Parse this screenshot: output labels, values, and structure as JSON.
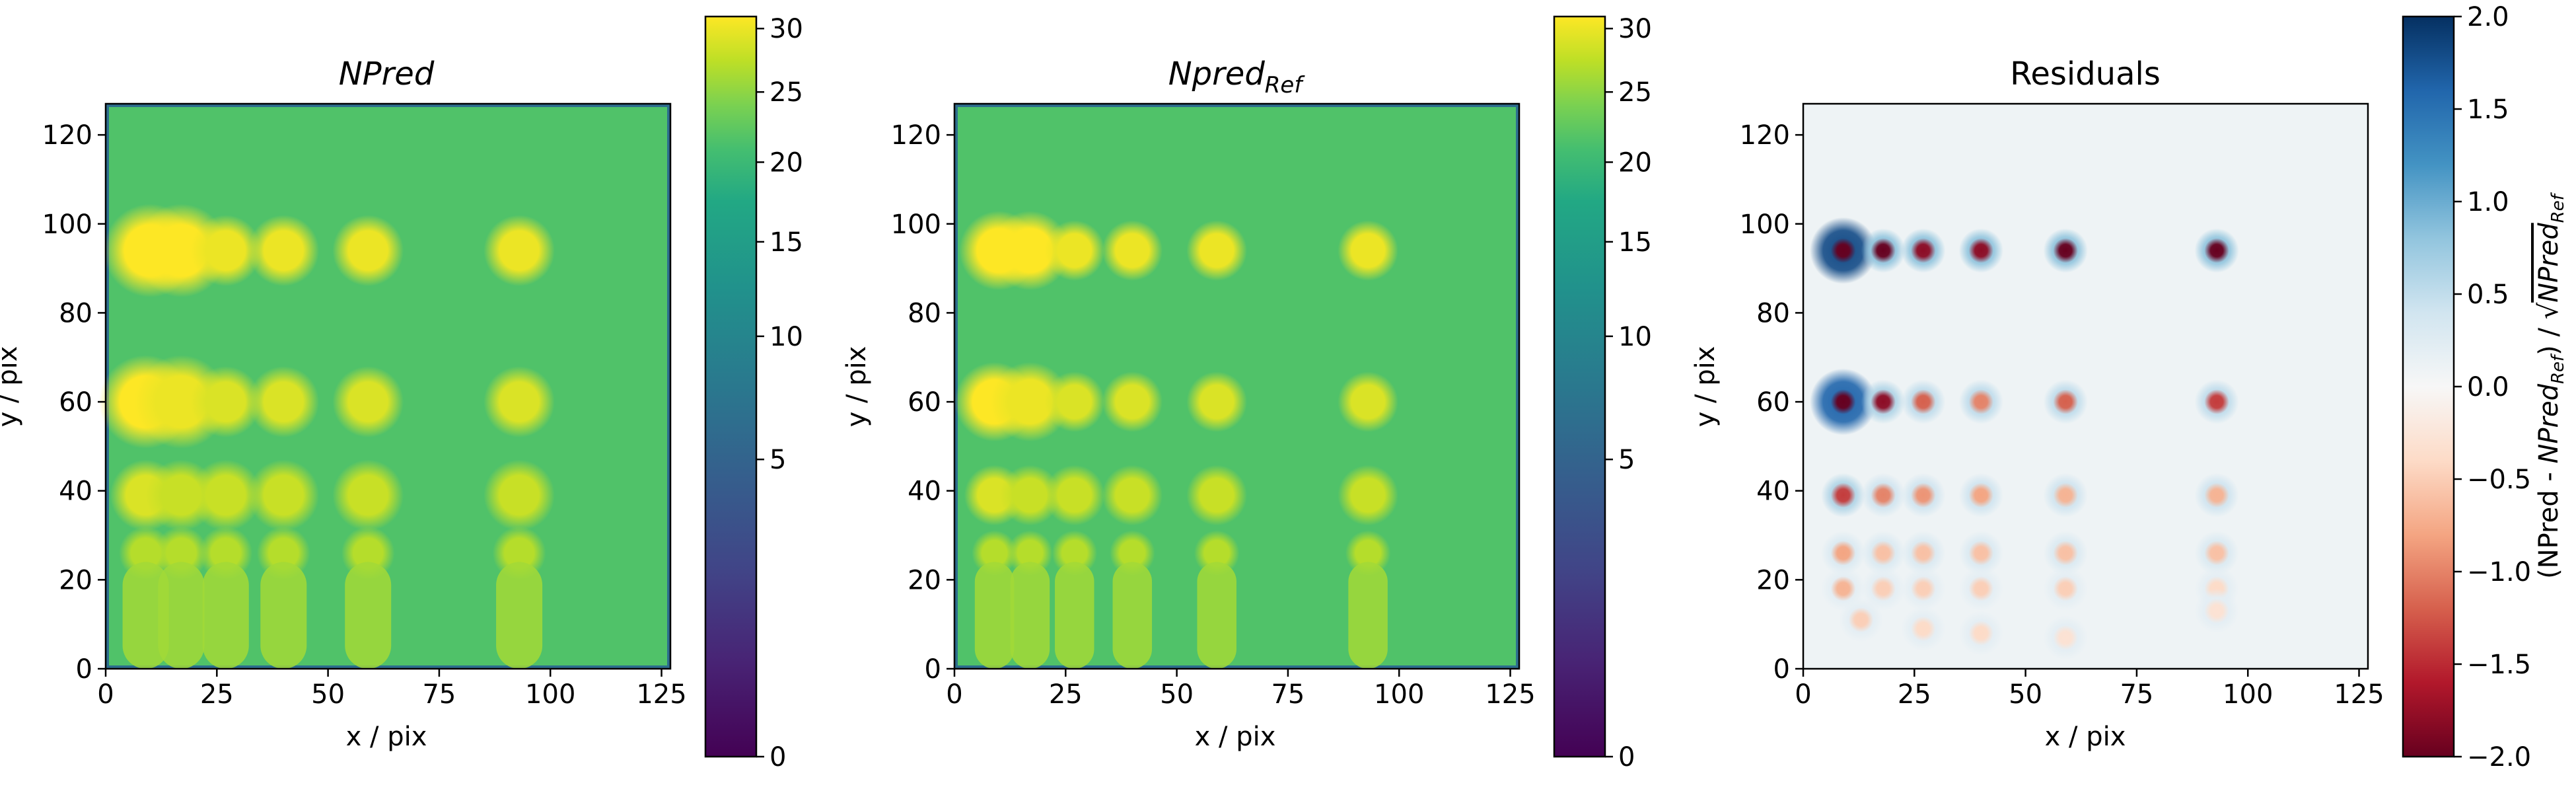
{
  "chart_data": [
    {
      "type": "heatmap",
      "title": "NPred",
      "xlabel": "x / pix",
      "ylabel": "y / pix",
      "xlim": [
        0,
        127
      ],
      "ylim": [
        0,
        127
      ],
      "x_ticks": [
        "0",
        "25",
        "50",
        "75",
        "100",
        "125"
      ],
      "y_ticks": [
        "0",
        "20",
        "40",
        "60",
        "80",
        "100",
        "120"
      ],
      "colormap": "viridis",
      "colorbar": {
        "scale": "sqrt",
        "ticks": [
          "0",
          "5",
          "10",
          "15",
          "20",
          "25",
          "30"
        ],
        "range": [
          0,
          31
        ]
      },
      "background_level": 21.5,
      "sources": [
        {
          "x": 10,
          "y": 94,
          "peak": 31,
          "size": "large"
        },
        {
          "x": 17,
          "y": 94,
          "peak": 31,
          "size": "large"
        },
        {
          "x": 27,
          "y": 94,
          "peak": 30,
          "size": "medium"
        },
        {
          "x": 40,
          "y": 94,
          "peak": 30,
          "size": "medium"
        },
        {
          "x": 59,
          "y": 94,
          "peak": 30,
          "size": "medium"
        },
        {
          "x": 93,
          "y": 94,
          "peak": 30,
          "size": "medium"
        },
        {
          "x": 9,
          "y": 60,
          "peak": 31,
          "size": "large"
        },
        {
          "x": 17,
          "y": 60,
          "peak": 30,
          "size": "large"
        },
        {
          "x": 27,
          "y": 60,
          "peak": 29,
          "size": "medium"
        },
        {
          "x": 40,
          "y": 60,
          "peak": 29,
          "size": "medium"
        },
        {
          "x": 59,
          "y": 60,
          "peak": 29,
          "size": "medium"
        },
        {
          "x": 93,
          "y": 60,
          "peak": 29,
          "size": "medium"
        },
        {
          "x": 9,
          "y": 39,
          "peak": 29,
          "size": "medium"
        },
        {
          "x": 17,
          "y": 39,
          "peak": 28,
          "size": "medium"
        },
        {
          "x": 27,
          "y": 39,
          "peak": 28,
          "size": "medium"
        },
        {
          "x": 40,
          "y": 39,
          "peak": 28,
          "size": "medium"
        },
        {
          "x": 59,
          "y": 39,
          "peak": 28,
          "size": "medium"
        },
        {
          "x": 93,
          "y": 39,
          "peak": 28,
          "size": "medium"
        },
        {
          "x": 9,
          "y": 26,
          "peak": 27,
          "size": "small"
        },
        {
          "x": 17,
          "y": 26,
          "peak": 27,
          "size": "small"
        },
        {
          "x": 27,
          "y": 26,
          "peak": 27,
          "size": "small"
        },
        {
          "x": 40,
          "y": 26,
          "peak": 27,
          "size": "small"
        },
        {
          "x": 59,
          "y": 26,
          "peak": 27,
          "size": "small"
        },
        {
          "x": 93,
          "y": 26,
          "peak": 27,
          "size": "small"
        },
        {
          "x": 9,
          "y": 12,
          "peak": 26,
          "size": "column"
        },
        {
          "x": 17,
          "y": 12,
          "peak": 26,
          "size": "column"
        },
        {
          "x": 27,
          "y": 12,
          "peak": 26,
          "size": "column"
        },
        {
          "x": 40,
          "y": 12,
          "peak": 26,
          "size": "column"
        },
        {
          "x": 59,
          "y": 12,
          "peak": 26,
          "size": "column"
        },
        {
          "x": 93,
          "y": 12,
          "peak": 26,
          "size": "column"
        }
      ]
    },
    {
      "type": "heatmap",
      "title_base": "Npred",
      "title_sub": "Ref",
      "xlabel": "x / pix",
      "ylabel": "y / pix",
      "xlim": [
        0,
        127
      ],
      "ylim": [
        0,
        127
      ],
      "x_ticks": [
        "0",
        "25",
        "50",
        "75",
        "100",
        "125"
      ],
      "y_ticks": [
        "0",
        "20",
        "40",
        "60",
        "80",
        "100",
        "120"
      ],
      "colormap": "viridis",
      "colorbar": {
        "scale": "sqrt",
        "ticks": [
          "0",
          "5",
          "10",
          "15",
          "20",
          "25",
          "30"
        ],
        "range": [
          0,
          31
        ]
      },
      "background_level": 21.5,
      "sources_note": "same source grid as NPred, slightly more compact"
    },
    {
      "type": "heatmap",
      "title": "Residuals",
      "xlabel": "x / pix",
      "ylabel": "y / pix",
      "xlim": [
        0,
        127
      ],
      "ylim": [
        0,
        127
      ],
      "x_ticks": [
        "0",
        "25",
        "50",
        "75",
        "100",
        "125"
      ],
      "y_ticks": [
        "0",
        "20",
        "40",
        "60",
        "80",
        "100",
        "120"
      ],
      "colormap": "RdBu",
      "colorbar": {
        "ticks": [
          "2.0",
          "1.5",
          "1.0",
          "0.5",
          "0.0",
          "−0.5",
          "−1.0",
          "−1.5",
          "−2.0"
        ],
        "range": [
          -2,
          2
        ],
        "label_parts": [
          "(NPred - ",
          "NPred",
          "Ref",
          ") / √",
          "NPred",
          "Ref"
        ]
      },
      "residual_sources": [
        {
          "x": 9,
          "y": 94,
          "core": -2.0,
          "ring": 1.8
        },
        {
          "x": 18,
          "y": 94,
          "core": -2.0,
          "ring": 0.8
        },
        {
          "x": 27,
          "y": 94,
          "core": -1.8,
          "ring": 0.8
        },
        {
          "x": 40,
          "y": 94,
          "core": -1.8,
          "ring": 0.8
        },
        {
          "x": 59,
          "y": 94,
          "core": -2.0,
          "ring": 0.8
        },
        {
          "x": 93,
          "y": 94,
          "core": -2.0,
          "ring": 0.8
        },
        {
          "x": 9,
          "y": 60,
          "core": -2.0,
          "ring": 1.6
        },
        {
          "x": 18,
          "y": 60,
          "core": -1.8,
          "ring": 0.6
        },
        {
          "x": 27,
          "y": 60,
          "core": -1.2,
          "ring": 0.5
        },
        {
          "x": 40,
          "y": 60,
          "core": -1.0,
          "ring": 0.5
        },
        {
          "x": 59,
          "y": 60,
          "core": -1.2,
          "ring": 0.5
        },
        {
          "x": 93,
          "y": 60,
          "core": -1.4,
          "ring": 0.5
        },
        {
          "x": 9,
          "y": 39,
          "core": -1.4,
          "ring": 0.6
        },
        {
          "x": 18,
          "y": 39,
          "core": -1.0,
          "ring": 0.4
        },
        {
          "x": 27,
          "y": 39,
          "core": -0.9,
          "ring": 0.4
        },
        {
          "x": 40,
          "y": 39,
          "core": -0.8,
          "ring": 0.4
        },
        {
          "x": 59,
          "y": 39,
          "core": -0.7,
          "ring": 0.4
        },
        {
          "x": 93,
          "y": 39,
          "core": -0.7,
          "ring": 0.4
        },
        {
          "x": 9,
          "y": 26,
          "core": -0.8,
          "ring": 0.3
        },
        {
          "x": 18,
          "y": 26,
          "core": -0.6,
          "ring": 0.3
        },
        {
          "x": 27,
          "y": 26,
          "core": -0.6,
          "ring": 0.3
        },
        {
          "x": 40,
          "y": 26,
          "core": -0.6,
          "ring": 0.3
        },
        {
          "x": 59,
          "y": 26,
          "core": -0.6,
          "ring": 0.3
        },
        {
          "x": 93,
          "y": 26,
          "core": -0.6,
          "ring": 0.3
        },
        {
          "x": 9,
          "y": 18,
          "core": -0.7,
          "ring": 0.2
        },
        {
          "x": 18,
          "y": 18,
          "core": -0.5,
          "ring": 0.2
        },
        {
          "x": 27,
          "y": 18,
          "core": -0.5,
          "ring": 0.2
        },
        {
          "x": 40,
          "y": 18,
          "core": -0.5,
          "ring": 0.2
        },
        {
          "x": 59,
          "y": 18,
          "core": -0.5,
          "ring": 0.2
        },
        {
          "x": 93,
          "y": 18,
          "core": -0.4,
          "ring": 0.2
        },
        {
          "x": 13,
          "y": 11,
          "core": -0.5,
          "ring": 0.2
        },
        {
          "x": 27,
          "y": 9,
          "core": -0.4,
          "ring": 0.2
        },
        {
          "x": 40,
          "y": 8,
          "core": -0.4,
          "ring": 0.2
        },
        {
          "x": 59,
          "y": 7,
          "core": -0.3,
          "ring": 0.2
        },
        {
          "x": 93,
          "y": 13,
          "core": -0.3,
          "ring": 0.2
        }
      ],
      "background_residual": 0.1
    }
  ]
}
